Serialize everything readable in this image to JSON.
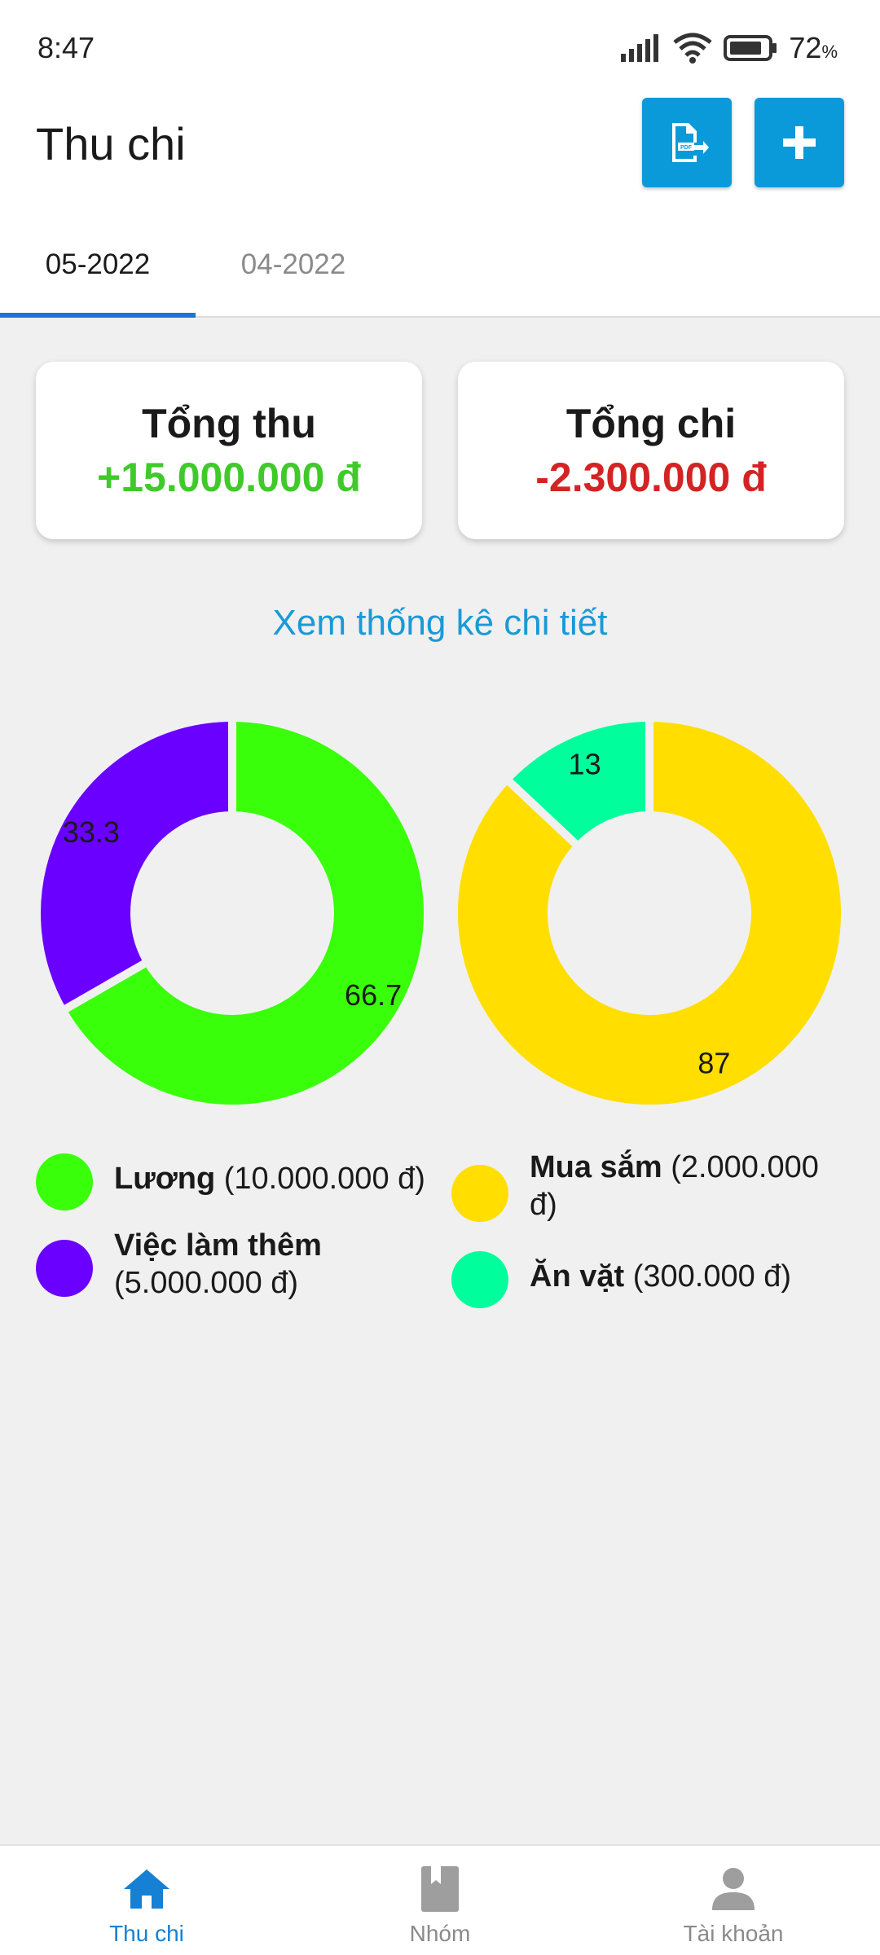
{
  "status_bar": {
    "time": "8:47",
    "battery": "72",
    "battery_unit": "%"
  },
  "header": {
    "title": "Thu chi",
    "icons": {
      "export": "pdf-export-icon",
      "add": "plus-icon"
    },
    "accent": "#0b9ad9"
  },
  "tabs": [
    {
      "label": "05-2022",
      "active": true
    },
    {
      "label": "04-2022",
      "active": false
    }
  ],
  "summary": {
    "income": {
      "title": "Tổng thu",
      "amount": "+15.000.000 đ",
      "color": "#3fca2a"
    },
    "expense": {
      "title": "Tổng chi",
      "amount": "-2.300.000 đ",
      "color": "#d42323"
    }
  },
  "detail_link": "Xem thống kê chi tiết",
  "legend": {
    "income": [
      {
        "name": "Lương",
        "amount": "(10.000.000 đ)",
        "color": "#39ff0a"
      },
      {
        "name": "Việc làm thêm",
        "amount": "(5.000.000 đ)",
        "color": "#6a00ff"
      }
    ],
    "expense": [
      {
        "name": "Mua sắm",
        "amount": "(2.000.000 đ)",
        "color": "#ffde00"
      },
      {
        "name": "Ăn vặt",
        "amount": "(300.000 đ)",
        "color": "#00ff9c"
      }
    ]
  },
  "chart_data": [
    {
      "type": "pie",
      "subtype": "donut",
      "categories": [
        "Lương",
        "Việc làm thêm"
      ],
      "values": [
        66.7,
        33.3
      ],
      "colors": [
        "#39ff0a",
        "#6a00ff"
      ],
      "data_labels": [
        "66.7",
        "33.3"
      ]
    },
    {
      "type": "pie",
      "subtype": "donut",
      "categories": [
        "Mua sắm",
        "Ăn vặt"
      ],
      "values": [
        87,
        13
      ],
      "colors": [
        "#ffde00",
        "#00ff9c"
      ],
      "data_labels": [
        "87",
        "13"
      ]
    }
  ],
  "bottom_nav": [
    {
      "label": "Thu chi",
      "icon": "home-icon",
      "active": true,
      "color": "#1680d4"
    },
    {
      "label": "Nhóm",
      "icon": "book-icon",
      "active": false,
      "color": "#9e9e9e"
    },
    {
      "label": "Tài khoản",
      "icon": "person-icon",
      "active": false,
      "color": "#9e9e9e"
    }
  ]
}
